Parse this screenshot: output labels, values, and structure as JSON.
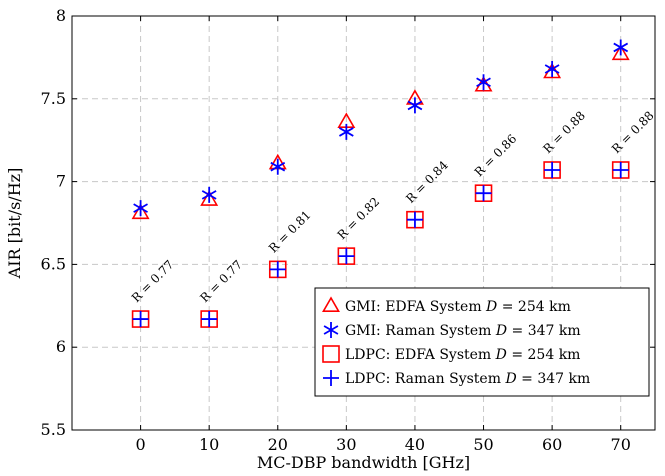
{
  "chart_data": {
    "type": "scatter",
    "xlabel": "MC-DBP bandwidth [GHz]",
    "ylabel": "AIR [bit/s/Hz]",
    "xlim": [
      -10,
      75
    ],
    "ylim": [
      5.5,
      8
    ],
    "xticks": [
      0,
      10,
      20,
      30,
      40,
      50,
      60,
      70
    ],
    "yticks": [
      5.5,
      6,
      6.5,
      7,
      7.5,
      8
    ],
    "xtick_labels": [
      "0",
      "10",
      "20",
      "30",
      "40",
      "50",
      "60",
      "70"
    ],
    "ytick_labels": [
      "5.5",
      "6",
      "6.5",
      "7",
      "7.5",
      "8"
    ],
    "grid": true,
    "legend_position": "bottom-right",
    "x": [
      0,
      10,
      20,
      30,
      40,
      50,
      60,
      70
    ],
    "series": [
      {
        "name_prefix": "GMI: EDFA System ",
        "name_var": "D",
        "name_suffix": " = 254 km",
        "marker": "triangle",
        "color": "#ff0000",
        "values": [
          6.81,
          6.89,
          7.11,
          7.36,
          7.5,
          7.58,
          7.66,
          7.77
        ]
      },
      {
        "name_prefix": "GMI: Raman System ",
        "name_var": "D",
        "name_suffix": " = 347 km",
        "marker": "asterisk",
        "color": "#0000ff",
        "values": [
          6.84,
          6.92,
          7.09,
          7.3,
          7.46,
          7.6,
          7.68,
          7.81
        ]
      },
      {
        "name_prefix": "LDPC: EDFA System ",
        "name_var": "D",
        "name_suffix": " = 254 km",
        "marker": "square",
        "color": "#ff0000",
        "values": [
          6.17,
          6.17,
          6.47,
          6.55,
          6.77,
          6.93,
          7.07,
          7.07
        ]
      },
      {
        "name_prefix": "LDPC: Raman System ",
        "name_var": "D",
        "name_suffix": " = 347 km",
        "marker": "plus",
        "color": "#0000ff",
        "values": [
          6.17,
          6.17,
          6.47,
          6.55,
          6.77,
          6.93,
          7.07,
          7.07
        ]
      }
    ],
    "annotations": [
      "R = 0.77",
      "R = 0.77",
      "R = 0.81",
      "R = 0.82",
      "R = 0.84",
      "R = 0.86",
      "R = 0.88",
      "R = 0.88"
    ]
  }
}
